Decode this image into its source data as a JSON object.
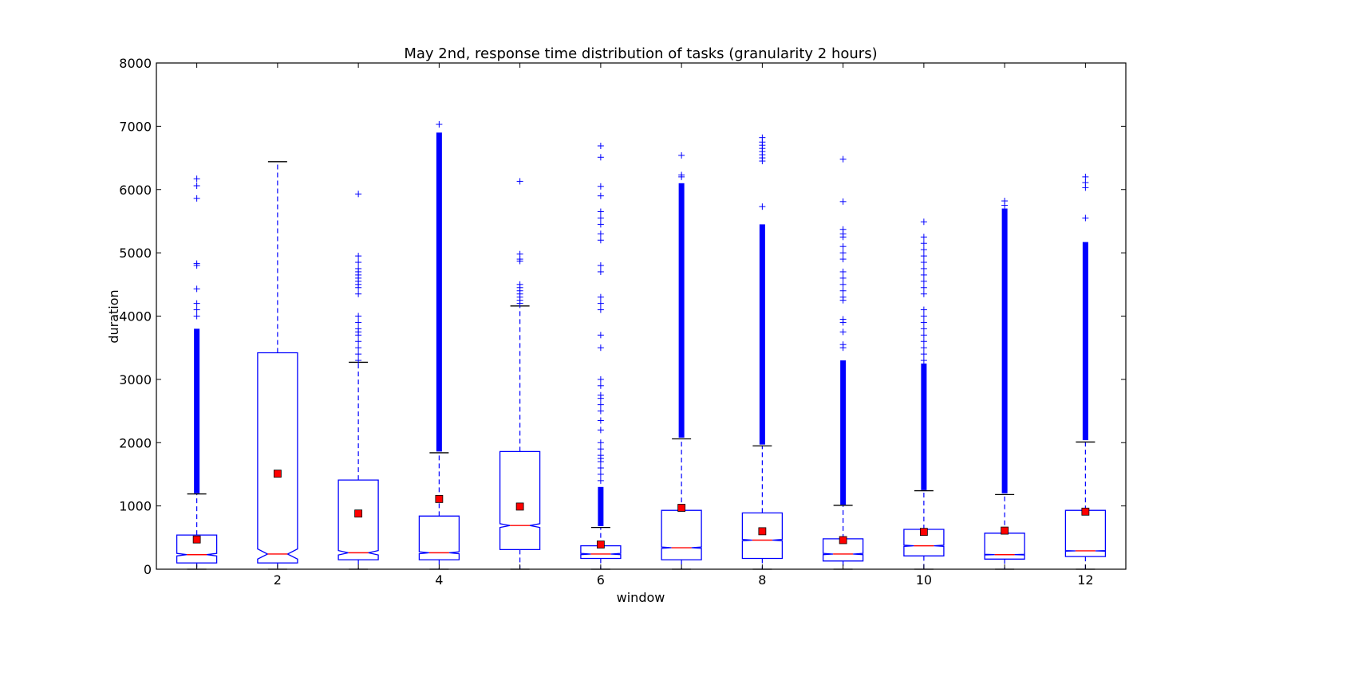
{
  "chart_data": {
    "type": "box",
    "title": "May 2nd, response time distribution of tasks (granularity 2 hours)",
    "xlabel": "window",
    "ylabel": "duration",
    "xlim": [
      0.5,
      12.5
    ],
    "ylim": [
      0,
      8000
    ],
    "xticks": [
      2,
      4,
      6,
      8,
      10,
      12
    ],
    "yticks": [
      0,
      1000,
      2000,
      3000,
      4000,
      5000,
      6000,
      7000,
      8000
    ],
    "notched": true,
    "colors": {
      "box": "#0000ff",
      "median": "#ff0000",
      "mean": "#ff0000",
      "whisker": "#0000ff",
      "cap": "#000000",
      "flier": "#0000ff"
    },
    "boxes": [
      {
        "window": 1,
        "whislo": 0,
        "q1": 100,
        "median": 230,
        "q3": 540,
        "whishi": 1190,
        "mean": 470,
        "notch_lo": 210,
        "notch_hi": 250,
        "fliers_dense": [
          1200,
          3800
        ],
        "fliers": [
          4000,
          4100,
          4200,
          4430,
          4800,
          4830,
          5860,
          6060,
          6170
        ]
      },
      {
        "window": 2,
        "whislo": 0,
        "q1": 100,
        "median": 240,
        "q3": 3420,
        "whishi": 6440,
        "mean": 1510,
        "notch_lo": 160,
        "notch_hi": 320,
        "fliers_dense": null,
        "fliers": []
      },
      {
        "window": 3,
        "whislo": 0,
        "q1": 150,
        "median": 260,
        "q3": 1410,
        "whishi": 3270,
        "mean": 880,
        "notch_lo": 225,
        "notch_hi": 295,
        "fliers_dense": null,
        "fliers": [
          3300,
          3400,
          3500,
          3600,
          3700,
          3750,
          3800,
          3900,
          4000,
          4350,
          4450,
          4500,
          4550,
          4600,
          4650,
          4700,
          4750,
          4850,
          4950,
          5930
        ]
      },
      {
        "window": 4,
        "whislo": 0,
        "q1": 150,
        "median": 260,
        "q3": 840,
        "whishi": 1840,
        "mean": 1110,
        "notch_lo": 245,
        "notch_hi": 275,
        "fliers_dense": [
          1860,
          6900
        ],
        "fliers": [
          7030
        ]
      },
      {
        "window": 5,
        "whislo": 0,
        "q1": 310,
        "median": 690,
        "q3": 1860,
        "whishi": 4160,
        "mean": 990,
        "notch_lo": 660,
        "notch_hi": 720,
        "fliers_dense": null,
        "fliers": [
          4200,
          4250,
          4300,
          4350,
          4400,
          4450,
          4500,
          4870,
          4900,
          4980,
          6130
        ]
      },
      {
        "window": 6,
        "whislo": 0,
        "q1": 170,
        "median": 240,
        "q3": 370,
        "whishi": 660,
        "mean": 390,
        "notch_lo": 230,
        "notch_hi": 250,
        "fliers_dense": [
          680,
          1300
        ],
        "fliers": [
          1400,
          1500,
          1600,
          1700,
          1750,
          1800,
          1900,
          2000,
          2200,
          2350,
          2500,
          2600,
          2700,
          2750,
          2900,
          3000,
          3500,
          3700,
          4100,
          4200,
          4300,
          4700,
          4800,
          5200,
          5300,
          5450,
          5550,
          5650,
          5900,
          6050,
          6510,
          6690
        ]
      },
      {
        "window": 7,
        "whislo": 0,
        "q1": 150,
        "median": 340,
        "q3": 930,
        "whishi": 2060,
        "mean": 970,
        "notch_lo": 330,
        "notch_hi": 350,
        "fliers_dense": [
          2080,
          6100
        ],
        "fliers": [
          6200,
          6230,
          6540
        ]
      },
      {
        "window": 8,
        "whislo": 0,
        "q1": 170,
        "median": 460,
        "q3": 890,
        "whishi": 1950,
        "mean": 600,
        "notch_lo": 450,
        "notch_hi": 470,
        "fliers_dense": [
          1970,
          5450
        ],
        "fliers": [
          5730,
          6450,
          6500,
          6550,
          6600,
          6650,
          6700,
          6750,
          6820
        ]
      },
      {
        "window": 9,
        "whislo": 0,
        "q1": 130,
        "median": 240,
        "q3": 480,
        "whishi": 1010,
        "mean": 460,
        "notch_lo": 230,
        "notch_hi": 250,
        "fliers_dense": [
          1020,
          3300
        ],
        "fliers": [
          3500,
          3550,
          3750,
          3900,
          3950,
          4250,
          4300,
          4400,
          4500,
          4600,
          4700,
          4900,
          5000,
          5100,
          5250,
          5300,
          5370,
          5810,
          6480
        ]
      },
      {
        "window": 10,
        "whislo": 0,
        "q1": 210,
        "median": 370,
        "q3": 630,
        "whishi": 1240,
        "mean": 590,
        "notch_lo": 360,
        "notch_hi": 380,
        "fliers_dense": [
          1250,
          3250
        ],
        "fliers": [
          3300,
          3400,
          3500,
          3600,
          3700,
          3800,
          3900,
          4000,
          4100,
          4350,
          4450,
          4550,
          4650,
          4750,
          4850,
          4950,
          5050,
          5150,
          5250,
          5490
        ]
      },
      {
        "window": 11,
        "whislo": 0,
        "q1": 160,
        "median": 230,
        "q3": 570,
        "whishi": 1180,
        "mean": 610,
        "notch_lo": 225,
        "notch_hi": 235,
        "fliers_dense": [
          1200,
          5700
        ],
        "fliers": [
          5750,
          5820
        ]
      },
      {
        "window": 12,
        "whislo": 0,
        "q1": 200,
        "median": 290,
        "q3": 930,
        "whishi": 2010,
        "mean": 910,
        "notch_lo": 285,
        "notch_hi": 295,
        "fliers_dense": [
          2040,
          5170
        ],
        "fliers": [
          5550,
          6030,
          6110,
          6200
        ]
      }
    ]
  }
}
